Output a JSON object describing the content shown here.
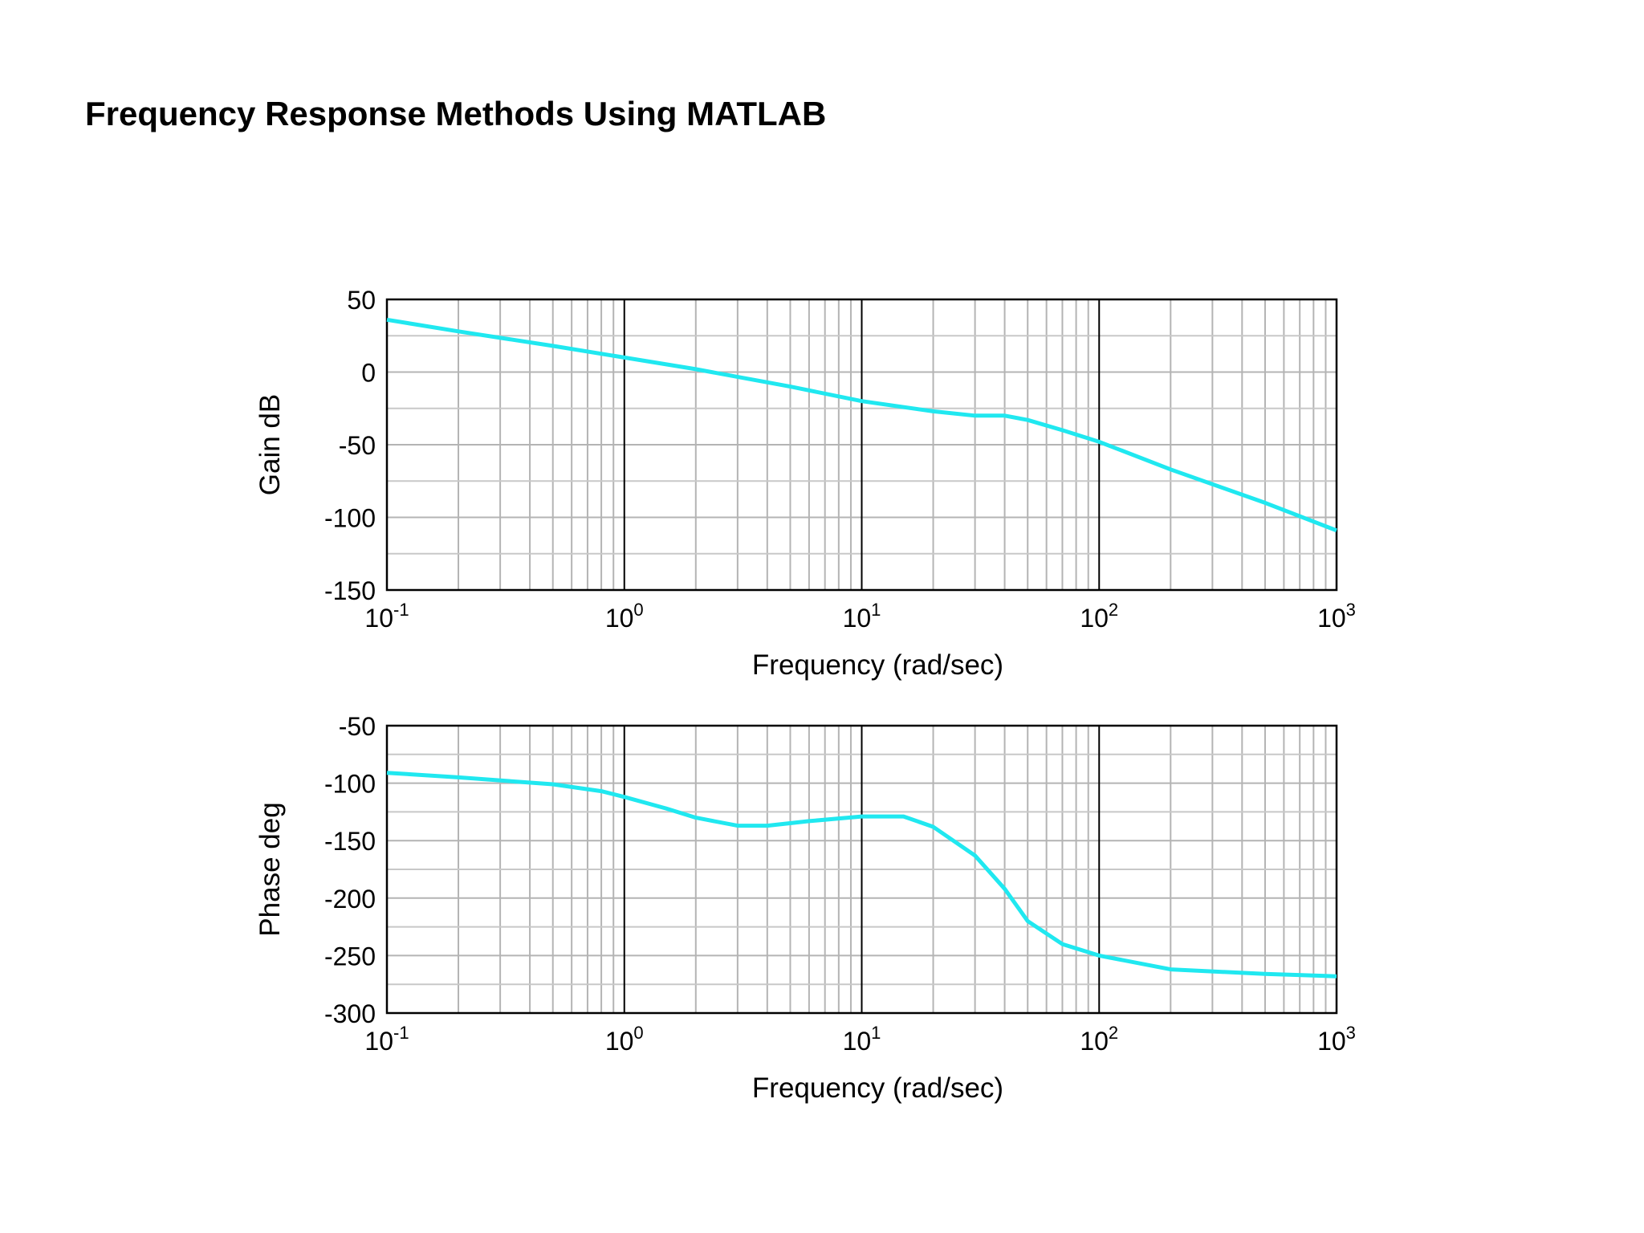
{
  "page": {
    "title": "Frequency Response Methods Using MATLAB"
  },
  "chart_data": [
    {
      "type": "line",
      "name": "gain-plot",
      "xscale": "log",
      "xlim": [
        0.1,
        1000
      ],
      "ylim": [
        -150,
        50
      ],
      "xlabel": "Frequency (rad/sec)",
      "ylabel": "Gain dB",
      "grid": true,
      "line_color": "#20e8f0",
      "yticks": [
        "50",
        "0",
        "-50",
        "-100",
        "-150"
      ],
      "ytick_values": [
        50,
        0,
        -50,
        -100,
        -150
      ],
      "xticks": [
        {
          "base": "10",
          "exp": "-1",
          "value": 0.1
        },
        {
          "base": "10",
          "exp": "0",
          "value": 1
        },
        {
          "base": "10",
          "exp": "1",
          "value": 10
        },
        {
          "base": "10",
          "exp": "2",
          "value": 100
        },
        {
          "base": "10",
          "exp": "3",
          "value": 1000
        }
      ],
      "series": [
        {
          "x": [
            0.1,
            0.2,
            0.5,
            1,
            2,
            5,
            10,
            20,
            30,
            40,
            50,
            70,
            100,
            200,
            500,
            1000
          ],
          "y": [
            36,
            28,
            18,
            10,
            2,
            -10,
            -20,
            -27,
            -30,
            -30,
            -33,
            -40,
            -48,
            -67,
            -90,
            -109
          ]
        }
      ]
    },
    {
      "type": "line",
      "name": "phase-plot",
      "xscale": "log",
      "xlim": [
        0.1,
        1000
      ],
      "ylim": [
        -300,
        -50
      ],
      "xlabel": "Frequency (rad/sec)",
      "ylabel": "Phase deg",
      "grid": true,
      "line_color": "#20e8f0",
      "yticks": [
        "-50",
        "-100",
        "-150",
        "-200",
        "-250",
        "-300"
      ],
      "ytick_values": [
        -50,
        -100,
        -150,
        -200,
        -250,
        -300
      ],
      "xticks": [
        {
          "base": "10",
          "exp": "-1",
          "value": 0.1
        },
        {
          "base": "10",
          "exp": "0",
          "value": 1
        },
        {
          "base": "10",
          "exp": "1",
          "value": 10
        },
        {
          "base": "10",
          "exp": "2",
          "value": 100
        },
        {
          "base": "10",
          "exp": "3",
          "value": 1000
        }
      ],
      "series": [
        {
          "x": [
            0.1,
            0.2,
            0.5,
            0.8,
            1,
            1.5,
            2,
            3,
            4,
            6,
            10,
            15,
            20,
            30,
            40,
            50,
            70,
            100,
            200,
            500,
            1000
          ],
          "y": [
            -91,
            -95,
            -101,
            -107,
            -112,
            -122,
            -130,
            -137,
            -137,
            -133,
            -129,
            -129,
            -138,
            -163,
            -192,
            -220,
            -240,
            -250,
            -262,
            -266,
            -268
          ]
        }
      ]
    }
  ]
}
